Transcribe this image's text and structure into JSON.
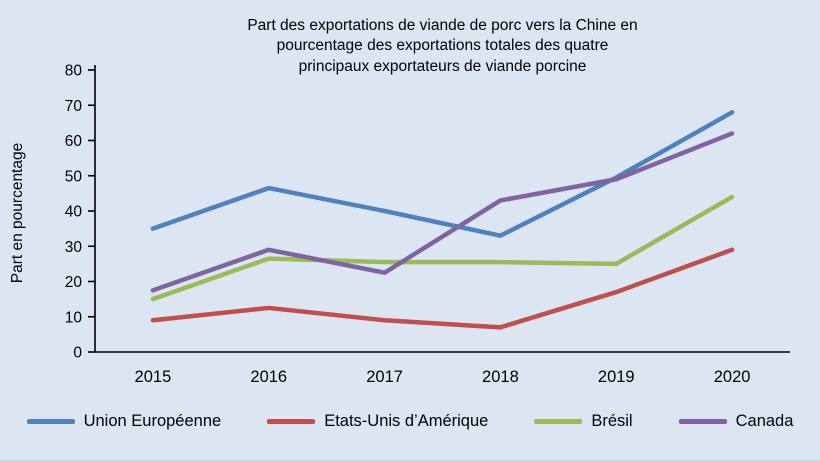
{
  "chart_data": {
    "type": "line",
    "title": "Part des exportations de viande de porc vers la Chine en pourcentage des exportations totales des quatre principaux exportateurs de viande porcine",
    "title_lines": [
      "Part des exportations de viande de porc vers la Chine en",
      "pourcentage des exportations totales des quatre",
      "principaux exportateurs de viande porcine"
    ],
    "ylabel": "Part en pourcentage",
    "xlabel": "",
    "ylim": [
      0,
      80
    ],
    "ytick_step": 10,
    "grid": false,
    "legend_position": "bottom",
    "categories": [
      "2015",
      "2016",
      "2017",
      "2018",
      "2019",
      "2020"
    ],
    "series": [
      {
        "name": "Union Européenne",
        "color": "#4f81bd",
        "values": [
          35,
          46.5,
          40,
          33,
          49.5,
          68
        ]
      },
      {
        "name": "Etats-Unis d’Amérique",
        "color": "#c0504d",
        "values": [
          9,
          12.5,
          9,
          7,
          17,
          29
        ]
      },
      {
        "name": "Brésil",
        "color": "#9bbb59",
        "values": [
          15,
          26.5,
          25.5,
          25.5,
          25,
          44
        ]
      },
      {
        "name": "Canada",
        "color": "#8064a2",
        "values": [
          17.5,
          29,
          22.5,
          43,
          49,
          62
        ]
      }
    ],
    "colors": {
      "background": "#dbe6f2",
      "axis": "#000000"
    }
  }
}
